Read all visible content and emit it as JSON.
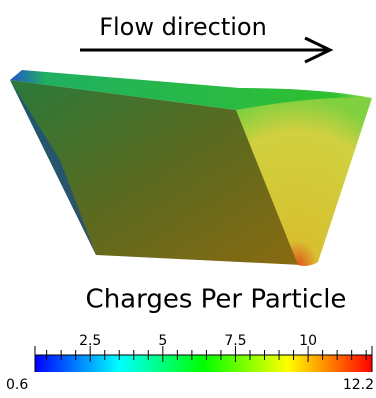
{
  "annotation": "Flow direction",
  "colorbar": {
    "title": "Charges Per Particle",
    "range": [
      0.6,
      12.2
    ],
    "min_label": "0.6",
    "max_label": "12.2",
    "ticks": [
      2.5,
      5,
      7.5,
      10
    ],
    "minor_ticks": [
      1,
      1.5,
      2,
      3,
      3.5,
      4,
      4.5,
      5.5,
      6,
      6.5,
      7,
      8,
      8.5,
      9,
      9.5,
      10.5,
      11,
      11.5,
      12
    ]
  }
}
